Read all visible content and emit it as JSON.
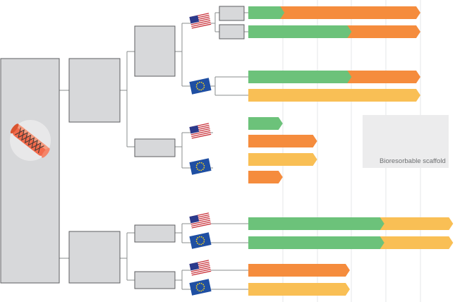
{
  "colors": {
    "green": "#6cc27a",
    "orange": "#f58c3d",
    "yellow": "#f9bf55",
    "box_fill": "#d7d8da",
    "box_stroke": "#5c5e60",
    "connector": "#8a8c8e",
    "grid": "#e6e7e8",
    "legend_fill": "#ececed",
    "legend_text": "#6d6f71",
    "us_red": "#c8313a",
    "us_blue": "#2b3a8c",
    "eu_blue": "#1f4fa3",
    "eu_star": "#f6d21a"
  },
  "icons": {
    "root": "stent-icon",
    "us_flag": "us-flag-icon",
    "eu_flag": "eu-flag-icon"
  },
  "legend": {
    "label": "Bioresorbable scaffold"
  },
  "rows": [
    {
      "flag": "us",
      "segments": [
        {
          "color": "green",
          "fraction": 0.21
        },
        {
          "color": "orange",
          "fraction": 1.0
        }
      ]
    },
    {
      "flag": "us",
      "segments": [
        {
          "color": "green",
          "fraction": 0.6
        },
        {
          "color": "orange",
          "fraction": 1.0
        }
      ]
    },
    {
      "flag": "eu",
      "segments": [
        {
          "color": "green",
          "fraction": 0.6
        },
        {
          "color": "orange",
          "fraction": 1.0
        }
      ]
    },
    {
      "flag": "eu",
      "segments": [
        {
          "color": "yellow",
          "fraction": 1.0
        }
      ]
    },
    {
      "flag": "us",
      "segments": [
        {
          "color": "green",
          "fraction": 0.2
        }
      ]
    },
    {
      "flag": "us",
      "segments": [
        {
          "color": "orange",
          "fraction": 0.4
        }
      ]
    },
    {
      "flag": "eu",
      "segments": [
        {
          "color": "yellow",
          "fraction": 0.4
        }
      ]
    },
    {
      "flag": "eu",
      "segments": [
        {
          "color": "orange",
          "fraction": 0.2
        }
      ]
    },
    {
      "flag": "us",
      "segments": [
        {
          "color": "green",
          "fraction": 0.79
        },
        {
          "color": "yellow",
          "fraction": 1.19
        }
      ]
    },
    {
      "flag": "eu",
      "segments": [
        {
          "color": "green",
          "fraction": 0.79
        },
        {
          "color": "yellow",
          "fraction": 1.19
        }
      ]
    },
    {
      "flag": "us",
      "segments": [
        {
          "color": "orange",
          "fraction": 0.59
        }
      ]
    },
    {
      "flag": "eu",
      "segments": [
        {
          "color": "yellow",
          "fraction": 0.59
        }
      ]
    }
  ]
}
